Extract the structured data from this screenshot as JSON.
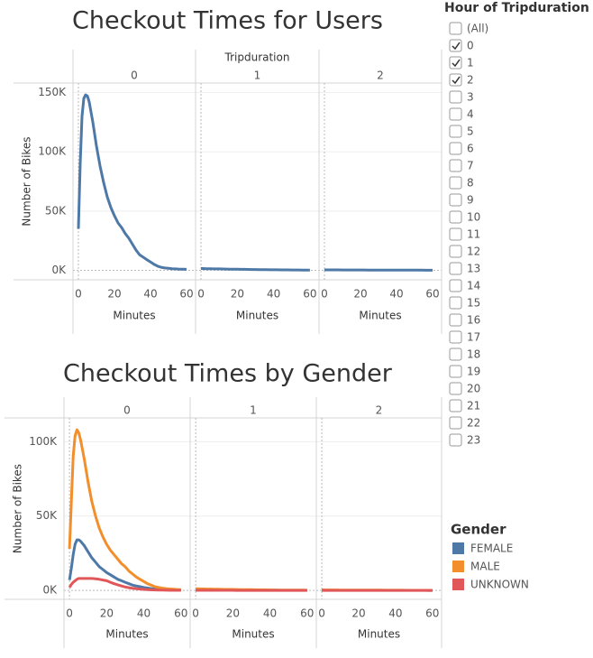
{
  "chart_data": [
    {
      "type": "line",
      "title": "Checkout Times for Users",
      "facet_label": "Tripduration",
      "panels": [
        "0",
        "1",
        "2"
      ],
      "x_label": "Minutes",
      "y_label": "Number of Bikes",
      "color": "#4e79a7",
      "x": [
        0,
        1,
        2,
        3,
        4,
        5,
        6,
        8,
        10,
        12,
        14,
        16,
        18,
        20,
        22,
        24,
        26,
        28,
        30,
        32,
        34,
        36,
        38,
        40,
        42,
        44,
        46,
        48,
        50,
        52,
        54,
        56,
        58,
        60
      ],
      "values": [
        [
          35000,
          90000,
          130000,
          145000,
          148000,
          147000,
          142000,
          125000,
          105000,
          88000,
          74000,
          62000,
          53000,
          46000,
          40000,
          36000,
          31000,
          27000,
          22000,
          17000,
          13000,
          11000,
          9000,
          7000,
          5000,
          3500,
          2500,
          2000,
          1700,
          1400,
          1200,
          1000,
          900,
          800
        ],
        [
          1500,
          1500,
          1450,
          1400,
          1400,
          1350,
          1300,
          1250,
          1200,
          1100,
          1050,
          1000,
          950,
          900,
          850,
          800,
          750,
          700,
          650,
          600,
          550,
          500,
          480,
          450,
          420,
          400,
          380,
          350,
          330,
          300,
          280,
          260,
          240,
          220
        ],
        [
          400,
          400,
          390,
          380,
          370,
          360,
          350,
          340,
          330,
          320,
          310,
          300,
          290,
          280,
          270,
          260,
          250,
          240,
          230,
          220,
          210,
          200,
          190,
          180,
          170,
          160,
          150,
          140,
          130,
          120,
          110,
          100,
          90,
          80
        ]
      ],
      "xlim": [
        -2,
        64
      ],
      "xticks": [
        0,
        20,
        40,
        60
      ],
      "ylim": [
        -8000,
        158000
      ],
      "yticks": [
        {
          "value": 0,
          "label": "0K"
        },
        {
          "value": 50000,
          "label": "50K"
        },
        {
          "value": 100000,
          "label": "100K"
        },
        {
          "value": 150000,
          "label": "150K"
        }
      ],
      "grid": true
    },
    {
      "type": "line",
      "title": "Checkout Times by Gender",
      "panels": [
        "0",
        "1",
        "2"
      ],
      "x_label": "Minutes",
      "y_label": "Number of Bikes",
      "legend_title": "Gender",
      "x": [
        0,
        1,
        2,
        3,
        4,
        5,
        6,
        8,
        10,
        12,
        14,
        16,
        18,
        20,
        22,
        24,
        26,
        28,
        30,
        32,
        34,
        36,
        38,
        40,
        42,
        44,
        46,
        48,
        50,
        52,
        54,
        56,
        58,
        60
      ],
      "series": [
        {
          "name": "FEMALE",
          "color": "#4e79a7",
          "values": [
            [
              7000,
              15000,
              24000,
              31000,
              34000,
              34000,
              33000,
              30000,
              26000,
              22000,
              19000,
              16000,
              14000,
              12000,
              10500,
              9000,
              7500,
              6500,
              5500,
              4500,
              3500,
              3000,
              2500,
              2000,
              1600,
              1200,
              1000,
              800,
              600,
              500,
              400,
              300,
              300,
              200
            ],
            [
              350,
              350,
              340,
              330,
              320,
              310,
              300,
              290,
              280,
              270,
              260,
              250,
              240,
              230,
              220,
              210,
              200,
              190,
              180,
              170,
              160,
              150,
              140,
              130,
              120,
              110,
              100,
              95,
              90,
              85,
              80,
              75,
              70,
              65
            ],
            [
              100,
              100,
              98,
              96,
              94,
              92,
              90,
              88,
              86,
              84,
              82,
              80,
              78,
              76,
              74,
              72,
              70,
              68,
              66,
              64,
              62,
              60,
              58,
              56,
              54,
              52,
              50,
              48,
              46,
              44,
              42,
              40,
              38,
              36
            ]
          ]
        },
        {
          "name": "MALE",
          "color": "#f28e2b",
          "values": [
            [
              28000,
              60000,
              90000,
              104000,
              108000,
              106000,
              101000,
              88000,
              73000,
              60000,
              50000,
              42000,
              36000,
              31000,
              27000,
              24000,
              21000,
              18000,
              16000,
              13000,
              11000,
              9000,
              7500,
              6000,
              4500,
              3500,
              2500,
              2000,
              1500,
              1200,
              1000,
              800,
              600,
              500
            ],
            [
              1100,
              1100,
              1050,
              1000,
              1000,
              950,
              900,
              900,
              850,
              800,
              750,
              700,
              680,
              650,
              600,
              580,
              550,
              500,
              480,
              450,
              400,
              380,
              350,
              330,
              300,
              280,
              260,
              250,
              230,
              210,
              200,
              180,
              170,
              160
            ],
            [
              350,
              350,
              340,
              330,
              320,
              310,
              300,
              290,
              280,
              270,
              260,
              250,
              240,
              230,
              220,
              210,
              200,
              190,
              180,
              170,
              160,
              150,
              140,
              130,
              120,
              110,
              100,
              95,
              90,
              85,
              80,
              75,
              70,
              65
            ]
          ]
        },
        {
          "name": "UNKNOWN",
          "color": "#e15759",
          "values": [
            [
              2000,
              4000,
              5500,
              6500,
              7500,
              8000,
              8000,
              8000,
              8000,
              8000,
              7800,
              7500,
              7000,
              6500,
              5500,
              4500,
              3800,
              3000,
              2300,
              1800,
              1400,
              1100,
              900,
              700,
              500,
              400,
              300,
              200,
              200,
              150,
              100,
              100,
              100,
              50
            ],
            [
              60,
              60,
              58,
              56,
              55,
              54,
              53,
              52,
              50,
              48,
              46,
              44,
              42,
              40,
              38,
              36,
              34,
              32,
              30,
              28,
              26,
              24,
              22,
              20,
              19,
              18,
              17,
              16,
              15,
              14,
              13,
              12,
              11,
              10
            ],
            [
              20,
              20,
              19,
              19,
              18,
              18,
              17,
              17,
              16,
              16,
              15,
              15,
              14,
              14,
              13,
              13,
              12,
              12,
              11,
              11,
              10,
              10,
              9,
              9,
              8,
              8,
              7,
              7,
              6,
              6,
              5,
              5,
              4,
              4
            ]
          ]
        }
      ],
      "xlim": [
        -2,
        64
      ],
      "xticks": [
        0,
        20,
        40,
        60
      ],
      "ylim": [
        -6000,
        116000
      ],
      "yticks": [
        {
          "value": 0,
          "label": "0K"
        },
        {
          "value": 50000,
          "label": "50K"
        },
        {
          "value": 100000,
          "label": "100K"
        }
      ],
      "grid": true
    }
  ],
  "filter": {
    "title": "Hour of Tripduration",
    "options": [
      "(All)",
      "0",
      "1",
      "2",
      "3",
      "4",
      "5",
      "6",
      "7",
      "8",
      "9",
      "10",
      "11",
      "12",
      "13",
      "14",
      "15",
      "16",
      "17",
      "18",
      "19",
      "20",
      "21",
      "22",
      "23"
    ],
    "checked": [
      false,
      true,
      true,
      true,
      false,
      false,
      false,
      false,
      false,
      false,
      false,
      false,
      false,
      false,
      false,
      false,
      false,
      false,
      false,
      false,
      false,
      false,
      false,
      false,
      false
    ]
  }
}
